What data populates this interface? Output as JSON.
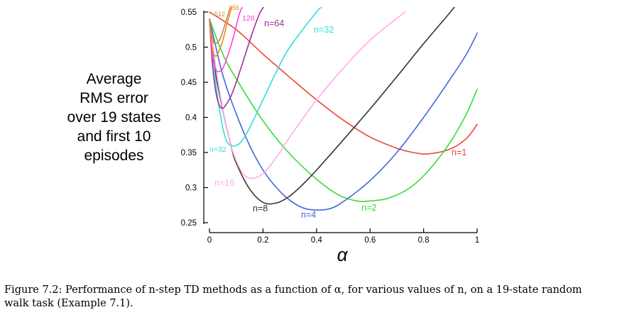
{
  "chart_data": {
    "type": "line",
    "title": "",
    "xlabel": "α",
    "ylabel_lines": [
      "Average",
      "RMS error",
      "over 19 states",
      "and first 10",
      "episodes"
    ],
    "xlim": [
      0,
      1
    ],
    "ylim": [
      0.25,
      0.55
    ],
    "x_ticks": [
      "0",
      "0.2",
      "0.4",
      "0.6",
      "0.8",
      "1"
    ],
    "y_ticks": [
      "0.25",
      "0.3",
      "0.35",
      "0.4",
      "0.45",
      "0.5",
      "0.55"
    ],
    "grid": false,
    "legend": "none (series labeled directly on curves)",
    "series": [
      {
        "name": "n=1",
        "label": "n=1",
        "color": "#ee4433",
        "x": [
          0,
          0.1,
          0.2,
          0.3,
          0.4,
          0.5,
          0.6,
          0.7,
          0.76,
          0.82,
          0.9,
          0.96,
          1.0
        ],
        "y": [
          0.55,
          0.525,
          0.49,
          0.457,
          0.425,
          0.396,
          0.372,
          0.356,
          0.35,
          0.348,
          0.355,
          0.37,
          0.39
        ]
      },
      {
        "name": "n=2",
        "label": "n=2",
        "color": "#33dd33",
        "x": [
          0,
          0.05,
          0.1,
          0.2,
          0.3,
          0.4,
          0.48,
          0.55,
          0.6,
          0.67,
          0.75,
          0.82,
          0.9,
          0.96,
          1.0
        ],
        "y": [
          0.54,
          0.49,
          0.455,
          0.395,
          0.348,
          0.312,
          0.29,
          0.281,
          0.281,
          0.285,
          0.3,
          0.325,
          0.365,
          0.405,
          0.44
        ]
      },
      {
        "name": "n=4",
        "label": "n=4",
        "color": "#4466dd",
        "x": [
          0,
          0.05,
          0.1,
          0.15,
          0.2,
          0.25,
          0.3,
          0.35,
          0.4,
          0.45,
          0.5,
          0.6,
          0.7,
          0.8,
          0.9,
          0.96,
          1.0
        ],
        "y": [
          0.54,
          0.46,
          0.405,
          0.36,
          0.325,
          0.3,
          0.282,
          0.271,
          0.268,
          0.27,
          0.28,
          0.31,
          0.35,
          0.4,
          0.455,
          0.49,
          0.52
        ]
      },
      {
        "name": "n=8",
        "label": "n=8",
        "color": "#333333",
        "x": [
          0,
          0.02,
          0.05,
          0.08,
          0.1,
          0.15,
          0.2,
          0.25,
          0.3,
          0.35,
          0.4,
          0.5,
          0.6,
          0.7,
          0.8,
          0.9,
          0.93
        ],
        "y": [
          0.54,
          0.47,
          0.41,
          0.36,
          0.335,
          0.298,
          0.279,
          0.278,
          0.288,
          0.305,
          0.325,
          0.368,
          0.412,
          0.458,
          0.505,
          0.55,
          0.565
        ]
      },
      {
        "name": "n=16",
        "label": "n=16",
        "color": "#ffaaee",
        "x": [
          0,
          0.03,
          0.07,
          0.1,
          0.13,
          0.16,
          0.2,
          0.25,
          0.3,
          0.4,
          0.5,
          0.6,
          0.73
        ],
        "y": [
          0.54,
          0.455,
          0.375,
          0.338,
          0.318,
          0.313,
          0.32,
          0.343,
          0.372,
          0.425,
          0.47,
          0.51,
          0.55
        ]
      },
      {
        "name": "n=32",
        "label": "n=32",
        "color": "#33dddd",
        "x": [
          0,
          0.02,
          0.04,
          0.06,
          0.08,
          0.1,
          0.12,
          0.15,
          0.2,
          0.25,
          0.3,
          0.4,
          0.43
        ],
        "y": [
          0.54,
          0.46,
          0.405,
          0.37,
          0.36,
          0.36,
          0.366,
          0.385,
          0.425,
          0.465,
          0.5,
          0.55,
          0.56
        ]
      },
      {
        "name": "n=64",
        "label": "n=64",
        "color": "#993399",
        "x": [
          0,
          0.01,
          0.02,
          0.03,
          0.04,
          0.05,
          0.06,
          0.08,
          0.1,
          0.13,
          0.16,
          0.19,
          0.22
        ],
        "y": [
          0.54,
          0.48,
          0.445,
          0.425,
          0.415,
          0.413,
          0.417,
          0.43,
          0.45,
          0.485,
          0.52,
          0.55,
          0.565
        ]
      },
      {
        "name": "n=128",
        "label": "128",
        "color": "#ff44cc",
        "x": [
          0,
          0.01,
          0.02,
          0.03,
          0.05,
          0.07,
          0.09,
          0.11,
          0.13
        ],
        "y": [
          0.54,
          0.49,
          0.472,
          0.465,
          0.47,
          0.49,
          0.515,
          0.545,
          0.565
        ]
      },
      {
        "name": "n=256",
        "label": "256",
        "color": "#ee8822",
        "x": [
          0,
          0.01,
          0.02,
          0.03,
          0.05,
          0.07,
          0.09
        ],
        "y": [
          0.54,
          0.5,
          0.488,
          0.49,
          0.51,
          0.54,
          0.565
        ]
      },
      {
        "name": "n=512",
        "label": "512",
        "color": "#cc8844",
        "x": [
          0,
          0.01,
          0.02,
          0.04,
          0.06,
          0.08
        ],
        "y": [
          0.54,
          0.515,
          0.505,
          0.512,
          0.535,
          0.56
        ]
      }
    ]
  },
  "caption": {
    "line1": "Figure 7.2: Performance of n-step TD methods as a function of α, for various values of n, on a 19-state random",
    "line2": "walk task (Example 7.1)."
  }
}
